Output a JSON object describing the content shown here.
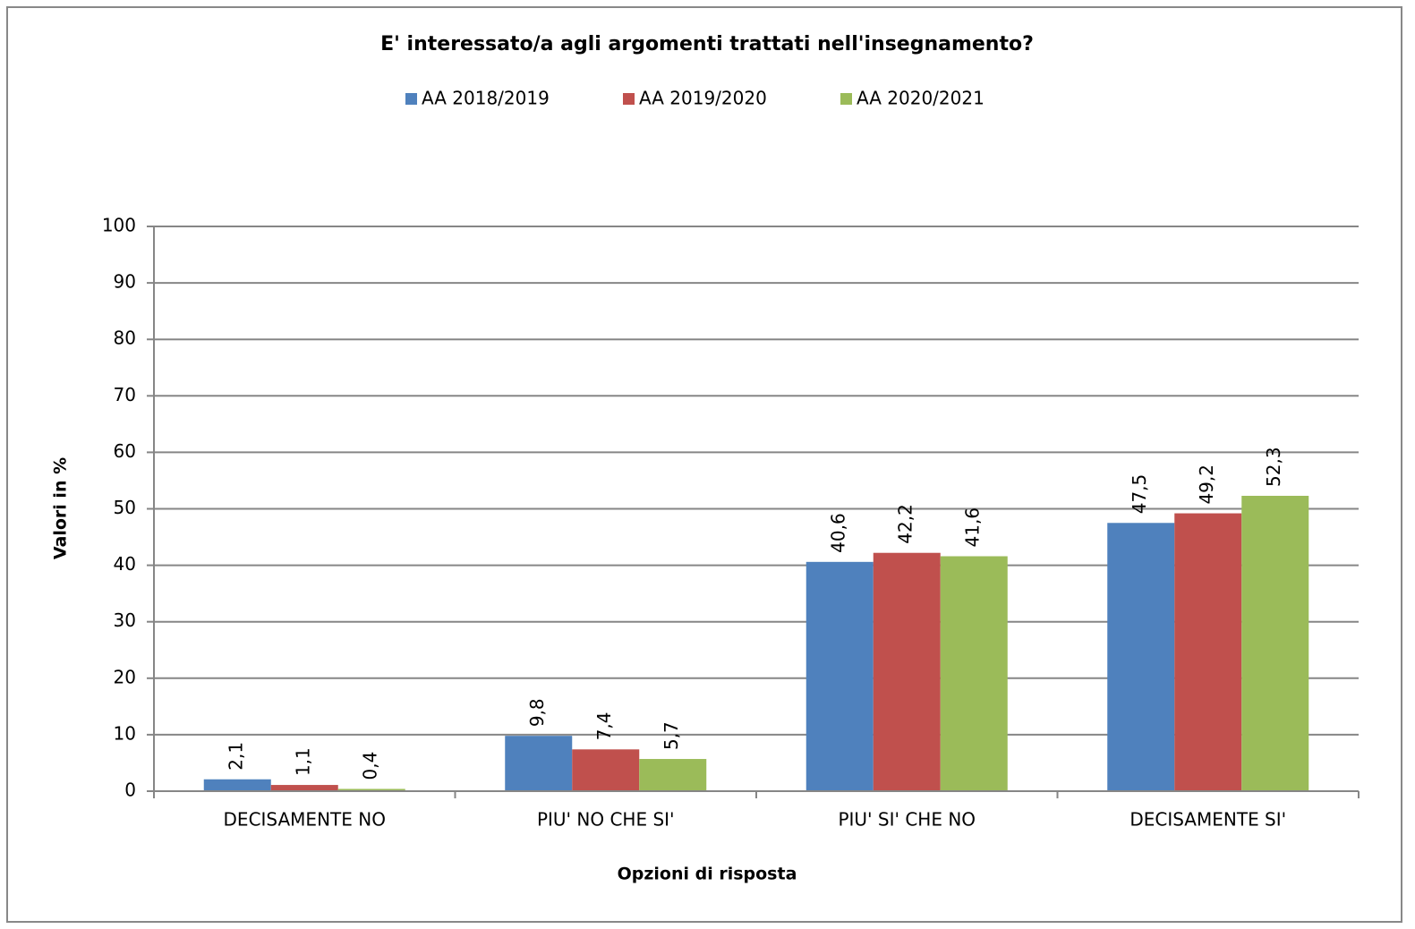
{
  "chart_data": {
    "type": "bar",
    "title": "E' interessato/a agli argomenti trattati nell'insegnamento?",
    "x_label": "Opzioni di risposta",
    "y_label": "Valori in %",
    "categories": [
      "DECISAMENTE NO",
      "PIU' NO CHE SI'",
      "PIU' SI' CHE NO",
      "DECISAMENTE SI'"
    ],
    "series": [
      {
        "name": "AA 2018/2019",
        "color": "#4f81bd",
        "values": [
          2.1,
          9.8,
          40.6,
          47.5
        ],
        "value_labels": [
          "2,1",
          "9,8",
          "40,6",
          "47,5"
        ]
      },
      {
        "name": "AA 2019/2020",
        "color": "#c0504d",
        "values": [
          1.1,
          7.4,
          42.2,
          49.2
        ],
        "value_labels": [
          "1,1",
          "7,4",
          "42,2",
          "49,2"
        ]
      },
      {
        "name": "AA 2020/2021",
        "color": "#9bbb59",
        "values": [
          0.4,
          5.7,
          41.6,
          52.3
        ],
        "value_labels": [
          "0,4",
          "5,7",
          "41,6",
          "52,3"
        ]
      }
    ],
    "ylim": [
      0,
      100
    ],
    "yticks": [
      0,
      10,
      20,
      30,
      40,
      50,
      60,
      70,
      80,
      90,
      100
    ],
    "grid": true,
    "legend": "top"
  }
}
